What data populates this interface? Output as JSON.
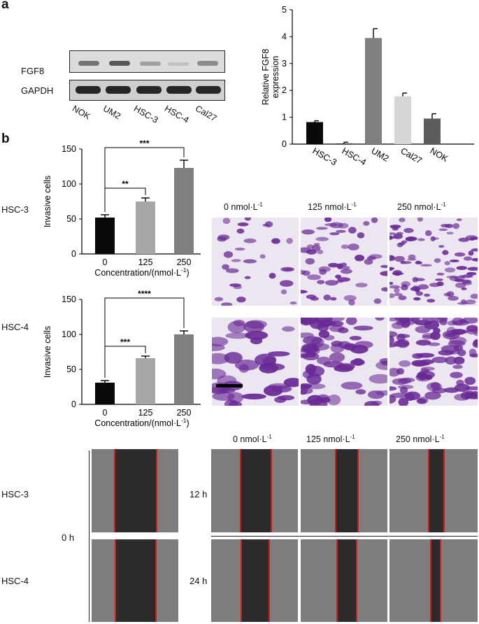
{
  "panel_a": {
    "letter": "a",
    "blot": {
      "bands": [
        "FGF8",
        "GAPDH"
      ],
      "lanes": [
        "NOK",
        "UM2",
        "HSC-3",
        "HSC-4",
        "Cal27"
      ]
    }
  },
  "panel_b": {
    "letter": "b",
    "row_labels": [
      "HSC-3",
      "HSC-4"
    ],
    "concentration_headers": [
      "0 nmol·L",
      "125 nmol·L",
      "250 nmol·L"
    ],
    "unit_superscript": "-1",
    "scale_bar": true
  },
  "panel_c": {
    "time_0": "0 h",
    "row_labels": [
      "HSC-3",
      "HSC-4"
    ],
    "time_labels": [
      "12 h",
      "24 h"
    ],
    "concentration_headers": [
      "0 nmol·L",
      "125 nmol·L",
      "250 nmol·L"
    ],
    "unit_superscript": "-1"
  },
  "colors": {
    "black": "#0a0a0a",
    "gray_light": "#a6a6a6",
    "gray_mid": "#7f7f7f",
    "gray_pale": "#d6d6d6",
    "gray_dark": "#5c5c5c",
    "crystal_violet": "#6a2a96",
    "wound_edge": "#d11a1a"
  },
  "chart_data": [
    {
      "type": "bar",
      "ylabel": "Relative FGF8\nexpression",
      "categories": [
        "HSC-3",
        "HSC-4",
        "UM2",
        "Cal27",
        "NOK"
      ],
      "values": [
        0.82,
        0.02,
        3.95,
        1.78,
        0.95
      ],
      "errors": [
        0.05,
        0.05,
        0.35,
        0.12,
        0.18
      ],
      "bar_colors": [
        "#0a0a0a",
        "#0a0a0a",
        "#7f7f7f",
        "#d6d6d6",
        "#5c5c5c"
      ],
      "ylim": [
        0,
        5
      ],
      "yticks": [
        0,
        1,
        2,
        3,
        4,
        5
      ]
    },
    {
      "type": "bar",
      "ylabel": "Invasive cells",
      "xlabel": "Concentration/(nmol·L",
      "xlabel_sup": "-1",
      "xlabel_end": ")",
      "categories": [
        "0",
        "125",
        "250"
      ],
      "values": [
        52,
        75,
        123
      ],
      "errors": [
        4,
        5,
        11
      ],
      "bar_colors": [
        "#0a0a0a",
        "#a6a6a6",
        "#7f7f7f"
      ],
      "ylim": [
        0,
        150
      ],
      "yticks": [
        0,
        50,
        100,
        150
      ],
      "significance": [
        {
          "from": 0,
          "to": 1,
          "label": "**"
        },
        {
          "from": 0,
          "to": 2,
          "label": "***"
        }
      ]
    },
    {
      "type": "bar",
      "ylabel": "Invasive cells",
      "xlabel": "Concentration/(nmol·L",
      "xlabel_sup": "-1",
      "xlabel_end": ")",
      "categories": [
        "0",
        "125",
        "250"
      ],
      "values": [
        31,
        66,
        100
      ],
      "errors": [
        3,
        3,
        5
      ],
      "bar_colors": [
        "#0a0a0a",
        "#a6a6a6",
        "#7f7f7f"
      ],
      "ylim": [
        0,
        150
      ],
      "yticks": [
        0,
        50,
        100,
        150
      ],
      "significance": [
        {
          "from": 0,
          "to": 1,
          "label": "***"
        },
        {
          "from": 0,
          "to": 2,
          "label": "****"
        }
      ]
    }
  ]
}
